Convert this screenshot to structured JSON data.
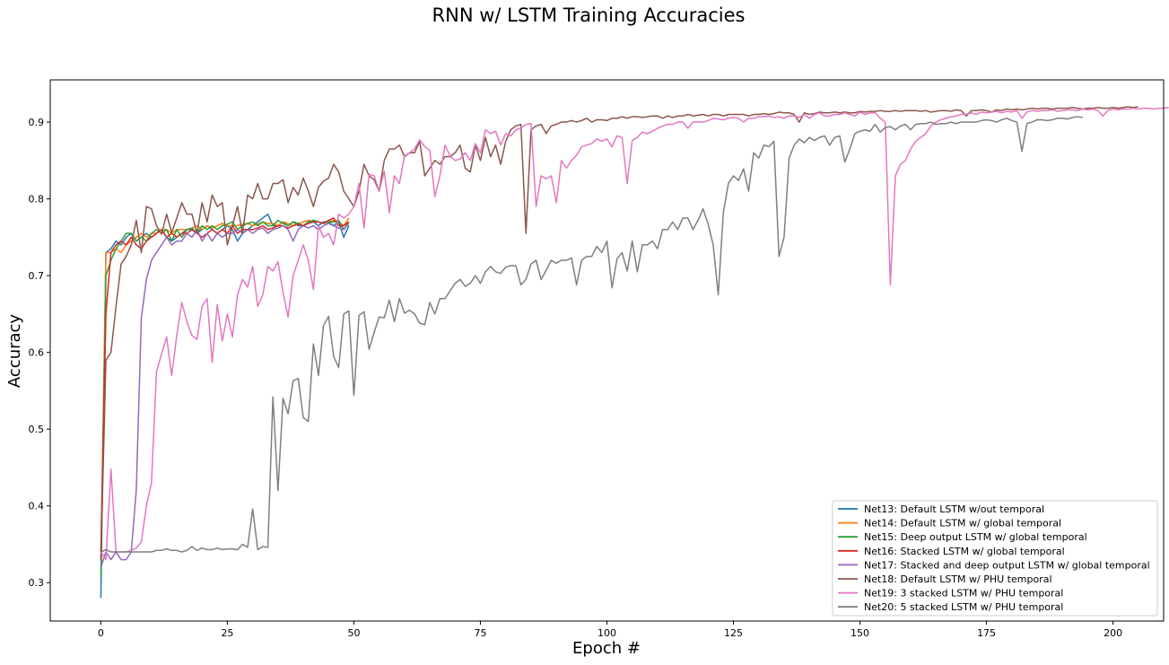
{
  "chart_data": {
    "type": "line",
    "title": "RNN w/ LSTM Training Accuracies",
    "xlabel": "Epoch #",
    "ylabel": "Accuracy",
    "xlim": [
      -10,
      210
    ],
    "ylim": [
      0.25,
      0.955
    ],
    "xticks": [
      0,
      25,
      50,
      75,
      100,
      125,
      150,
      175,
      200
    ],
    "yticks": [
      0.3,
      0.4,
      0.5,
      0.6,
      0.7,
      0.8,
      0.9
    ],
    "grid": false,
    "legend_position": "lower-right",
    "series": [
      {
        "name": "Net13: Default LSTM w/out temporal",
        "color": "#1f77b4",
        "values": [
          0.28,
          0.73,
          0.735,
          0.745,
          0.74,
          0.75,
          0.755,
          0.745,
          0.75,
          0.755,
          0.75,
          0.755,
          0.76,
          0.75,
          0.745,
          0.75,
          0.755,
          0.76,
          0.76,
          0.755,
          0.76,
          0.765,
          0.76,
          0.755,
          0.76,
          0.765,
          0.76,
          0.745,
          0.755,
          0.76,
          0.765,
          0.77,
          0.775,
          0.78,
          0.765,
          0.765,
          0.77,
          0.765,
          0.77,
          0.765,
          0.765,
          0.77,
          0.77,
          0.765,
          0.77,
          0.77,
          0.765,
          0.77,
          0.75,
          0.765
        ]
      },
      {
        "name": "Net14: Default LSTM w/ global temporal",
        "color": "#ff7f0e",
        "values": [
          0.33,
          0.73,
          0.73,
          0.735,
          0.73,
          0.74,
          0.745,
          0.75,
          0.755,
          0.75,
          0.755,
          0.755,
          0.76,
          0.76,
          0.755,
          0.76,
          0.76,
          0.76,
          0.762,
          0.765,
          0.76,
          0.765,
          0.762,
          0.765,
          0.768,
          0.765,
          0.765,
          0.765,
          0.767,
          0.768,
          0.765,
          0.767,
          0.77,
          0.768,
          0.768,
          0.765,
          0.77,
          0.768,
          0.765,
          0.768,
          0.77,
          0.772,
          0.77,
          0.77,
          0.768,
          0.77,
          0.772,
          0.77,
          0.765,
          0.775
        ]
      },
      {
        "name": "Net15: Deep output LSTM w/ global temporal",
        "color": "#2ca02c",
        "values": [
          0.31,
          0.7,
          0.72,
          0.735,
          0.745,
          0.755,
          0.755,
          0.745,
          0.75,
          0.745,
          0.755,
          0.76,
          0.755,
          0.76,
          0.745,
          0.76,
          0.75,
          0.76,
          0.762,
          0.755,
          0.765,
          0.76,
          0.765,
          0.76,
          0.765,
          0.767,
          0.77,
          0.76,
          0.765,
          0.768,
          0.77,
          0.765,
          0.77,
          0.765,
          0.765,
          0.772,
          0.768,
          0.765,
          0.77,
          0.768,
          0.765,
          0.77,
          0.772,
          0.77,
          0.768,
          0.77,
          0.77,
          0.772,
          0.76,
          0.77
        ]
      },
      {
        "name": "Net16: Stacked LSTM w/ global temporal",
        "color": "#d62728",
        "values": [
          0.34,
          0.65,
          0.73,
          0.74,
          0.745,
          0.74,
          0.75,
          0.74,
          0.735,
          0.745,
          0.75,
          0.755,
          0.76,
          0.75,
          0.755,
          0.75,
          0.755,
          0.755,
          0.76,
          0.755,
          0.75,
          0.755,
          0.76,
          0.755,
          0.76,
          0.755,
          0.765,
          0.755,
          0.76,
          0.76,
          0.76,
          0.762,
          0.765,
          0.76,
          0.762,
          0.765,
          0.765,
          0.762,
          0.765,
          0.767,
          0.765,
          0.768,
          0.77,
          0.77,
          0.768,
          0.772,
          0.775,
          0.765,
          0.765,
          0.77
        ]
      },
      {
        "name": "Net17: Stacked and deep output LSTM w/ global temporal",
        "color": "#9467bd",
        "values": [
          0.32,
          0.34,
          0.33,
          0.34,
          0.33,
          0.33,
          0.34,
          0.42,
          0.645,
          0.695,
          0.72,
          0.73,
          0.74,
          0.75,
          0.74,
          0.745,
          0.745,
          0.755,
          0.75,
          0.76,
          0.745,
          0.755,
          0.745,
          0.755,
          0.75,
          0.755,
          0.755,
          0.76,
          0.755,
          0.76,
          0.755,
          0.76,
          0.762,
          0.755,
          0.76,
          0.762,
          0.765,
          0.76,
          0.745,
          0.76,
          0.765,
          0.762,
          0.765,
          0.76,
          0.765,
          0.768,
          0.765,
          0.762,
          0.76,
          0.768
        ]
      },
      {
        "name": "Net18: Default LSTM w/ PHU temporal",
        "color": "#8c564b",
        "values": [
          0.33,
          0.59,
          0.6,
          0.66,
          0.715,
          0.725,
          0.74,
          0.772,
          0.73,
          0.79,
          0.787,
          0.765,
          0.754,
          0.78,
          0.756,
          0.775,
          0.795,
          0.78,
          0.78,
          0.755,
          0.795,
          0.77,
          0.805,
          0.79,
          0.795,
          0.74,
          0.765,
          0.79,
          0.755,
          0.805,
          0.8,
          0.82,
          0.8,
          0.8,
          0.82,
          0.82,
          0.825,
          0.795,
          0.815,
          0.805,
          0.827,
          0.81,
          0.79,
          0.815,
          0.823,
          0.827,
          0.845,
          0.835,
          0.81,
          0.8,
          0.79,
          0.81,
          0.845,
          0.83,
          0.825,
          0.81,
          0.85,
          0.865,
          0.865,
          0.87,
          0.855,
          0.86,
          0.86,
          0.875,
          0.83,
          0.84,
          0.85,
          0.845,
          0.855,
          0.855,
          0.86,
          0.87,
          0.84,
          0.835,
          0.87,
          0.85,
          0.88,
          0.855,
          0.87,
          0.845,
          0.875,
          0.89,
          0.895,
          0.897,
          0.755,
          0.89,
          0.895,
          0.897,
          0.885,
          0.895,
          0.897,
          0.9,
          0.9,
          0.902,
          0.9,
          0.902,
          0.905,
          0.9,
          0.903,
          0.903,
          0.902,
          0.905,
          0.905,
          0.907,
          0.905,
          0.907,
          0.907,
          0.906,
          0.907,
          0.908,
          0.908,
          0.905,
          0.908,
          0.906,
          0.908,
          0.908,
          0.91,
          0.908,
          0.909,
          0.91,
          0.908,
          0.91,
          0.91,
          0.908,
          0.91,
          0.91,
          0.91,
          0.91,
          0.908,
          0.91,
          0.91,
          0.911,
          0.91,
          0.911,
          0.913,
          0.912,
          0.912,
          0.91,
          0.9,
          0.912,
          0.91,
          0.911,
          0.913,
          0.912,
          0.912,
          0.913,
          0.912,
          0.913,
          0.912,
          0.912,
          0.914,
          0.913,
          0.914,
          0.914,
          0.915,
          0.914,
          0.914,
          0.915,
          0.914,
          0.915,
          0.915,
          0.915,
          0.914,
          0.915,
          0.913,
          0.914,
          0.915,
          0.915,
          0.914,
          0.916,
          0.915,
          0.908,
          0.915,
          0.915,
          0.916,
          0.915,
          0.913,
          0.916,
          0.915,
          0.917,
          0.916,
          0.917,
          0.916,
          0.917,
          0.918,
          0.917,
          0.918,
          0.918,
          0.917,
          0.918,
          0.918,
          0.918,
          0.919,
          0.918,
          0.917,
          0.918,
          0.918,
          0.919,
          0.918,
          0.918,
          0.919,
          0.918,
          0.919,
          0.92,
          0.919,
          0.92
        ]
      },
      {
        "name": "Net19: 3 stacked LSTM w/ PHU temporal",
        "color": "#e377c2",
        "values": [
          0.34,
          0.33,
          0.448,
          0.34,
          0.34,
          0.34,
          0.342,
          0.345,
          0.353,
          0.4,
          0.43,
          0.575,
          0.598,
          0.62,
          0.57,
          0.622,
          0.665,
          0.64,
          0.622,
          0.617,
          0.66,
          0.67,
          0.587,
          0.662,
          0.615,
          0.65,
          0.62,
          0.675,
          0.695,
          0.685,
          0.712,
          0.66,
          0.675,
          0.712,
          0.706,
          0.718,
          0.678,
          0.646,
          0.7,
          0.72,
          0.74,
          0.72,
          0.682,
          0.765,
          0.75,
          0.755,
          0.74,
          0.78,
          0.775,
          0.78,
          0.79,
          0.82,
          0.762,
          0.832,
          0.83,
          0.81,
          0.836,
          0.782,
          0.83,
          0.82,
          0.856,
          0.86,
          0.865,
          0.877,
          0.868,
          0.863,
          0.803,
          0.83,
          0.87,
          0.856,
          0.85,
          0.852,
          0.86,
          0.85,
          0.872,
          0.86,
          0.89,
          0.885,
          0.888,
          0.87,
          0.885,
          0.882,
          0.89,
          0.892,
          0.897,
          0.898,
          0.79,
          0.83,
          0.826,
          0.83,
          0.795,
          0.85,
          0.84,
          0.85,
          0.857,
          0.868,
          0.87,
          0.872,
          0.878,
          0.875,
          0.878,
          0.868,
          0.882,
          0.88,
          0.82,
          0.876,
          0.88,
          0.887,
          0.885,
          0.888,
          0.892,
          0.895,
          0.897,
          0.897,
          0.9,
          0.9,
          0.892,
          0.9,
          0.9,
          0.9,
          0.902,
          0.905,
          0.904,
          0.903,
          0.905,
          0.906,
          0.905,
          0.9,
          0.905,
          0.905,
          0.907,
          0.907,
          0.908,
          0.906,
          0.907,
          0.905,
          0.908,
          0.908,
          0.906,
          0.91,
          0.905,
          0.91,
          0.912,
          0.908,
          0.908,
          0.91,
          0.91,
          0.912,
          0.91,
          0.908,
          0.913,
          0.91,
          0.912,
          0.912,
          0.905,
          0.9,
          0.688,
          0.83,
          0.845,
          0.85,
          0.865,
          0.875,
          0.88,
          0.885,
          0.895,
          0.9,
          0.903,
          0.905,
          0.907,
          0.908,
          0.91,
          0.91,
          0.912,
          0.91,
          0.913,
          0.912,
          0.913,
          0.914,
          0.912,
          0.914,
          0.913,
          0.915,
          0.905,
          0.913,
          0.915,
          0.914,
          0.915,
          0.915,
          0.916,
          0.914,
          0.915,
          0.916,
          0.916,
          0.915,
          0.917,
          0.916,
          0.917,
          0.915,
          0.908,
          0.915,
          0.917,
          0.916,
          0.917,
          0.917,
          0.918,
          0.917,
          0.918,
          0.918,
          0.917,
          0.918,
          0.918,
          0.919
        ]
      },
      {
        "name": "Net20: 5 stacked LSTM w/ PHU temporal",
        "color": "#7f7f7f",
        "values": [
          0.34,
          0.343,
          0.34,
          0.34,
          0.34,
          0.34,
          0.34,
          0.34,
          0.34,
          0.34,
          0.34,
          0.342,
          0.342,
          0.344,
          0.342,
          0.342,
          0.34,
          0.342,
          0.347,
          0.342,
          0.345,
          0.343,
          0.343,
          0.345,
          0.343,
          0.344,
          0.344,
          0.343,
          0.35,
          0.346,
          0.396,
          0.343,
          0.347,
          0.346,
          0.542,
          0.42,
          0.54,
          0.52,
          0.563,
          0.566,
          0.515,
          0.51,
          0.611,
          0.57,
          0.635,
          0.647,
          0.595,
          0.58,
          0.65,
          0.654,
          0.544,
          0.648,
          0.653,
          0.604,
          0.626,
          0.646,
          0.645,
          0.668,
          0.64,
          0.67,
          0.651,
          0.655,
          0.65,
          0.638,
          0.636,
          0.665,
          0.65,
          0.67,
          0.67,
          0.68,
          0.69,
          0.695,
          0.686,
          0.69,
          0.7,
          0.69,
          0.705,
          0.712,
          0.705,
          0.703,
          0.711,
          0.713,
          0.713,
          0.688,
          0.695,
          0.715,
          0.72,
          0.695,
          0.707,
          0.72,
          0.716,
          0.72,
          0.72,
          0.723,
          0.688,
          0.72,
          0.725,
          0.725,
          0.738,
          0.73,
          0.745,
          0.684,
          0.722,
          0.73,
          0.706,
          0.745,
          0.705,
          0.74,
          0.74,
          0.745,
          0.735,
          0.76,
          0.76,
          0.77,
          0.76,
          0.775,
          0.775,
          0.76,
          0.772,
          0.787,
          0.767,
          0.74,
          0.675,
          0.782,
          0.82,
          0.83,
          0.824,
          0.839,
          0.81,
          0.86,
          0.853,
          0.87,
          0.868,
          0.875,
          0.725,
          0.75,
          0.853,
          0.87,
          0.878,
          0.873,
          0.88,
          0.876,
          0.88,
          0.882,
          0.87,
          0.88,
          0.882,
          0.848,
          0.865,
          0.885,
          0.888,
          0.89,
          0.888,
          0.897,
          0.887,
          0.893,
          0.894,
          0.89,
          0.895,
          0.897,
          0.89,
          0.897,
          0.898,
          0.898,
          0.9,
          0.897,
          0.898,
          0.898,
          0.9,
          0.898,
          0.9,
          0.9,
          0.9,
          0.9,
          0.902,
          0.903,
          0.902,
          0.9,
          0.903,
          0.905,
          0.902,
          0.9,
          0.862,
          0.898,
          0.9,
          0.903,
          0.903,
          0.902,
          0.903,
          0.905,
          0.905,
          0.904,
          0.906,
          0.907,
          0.906
        ]
      }
    ]
  }
}
